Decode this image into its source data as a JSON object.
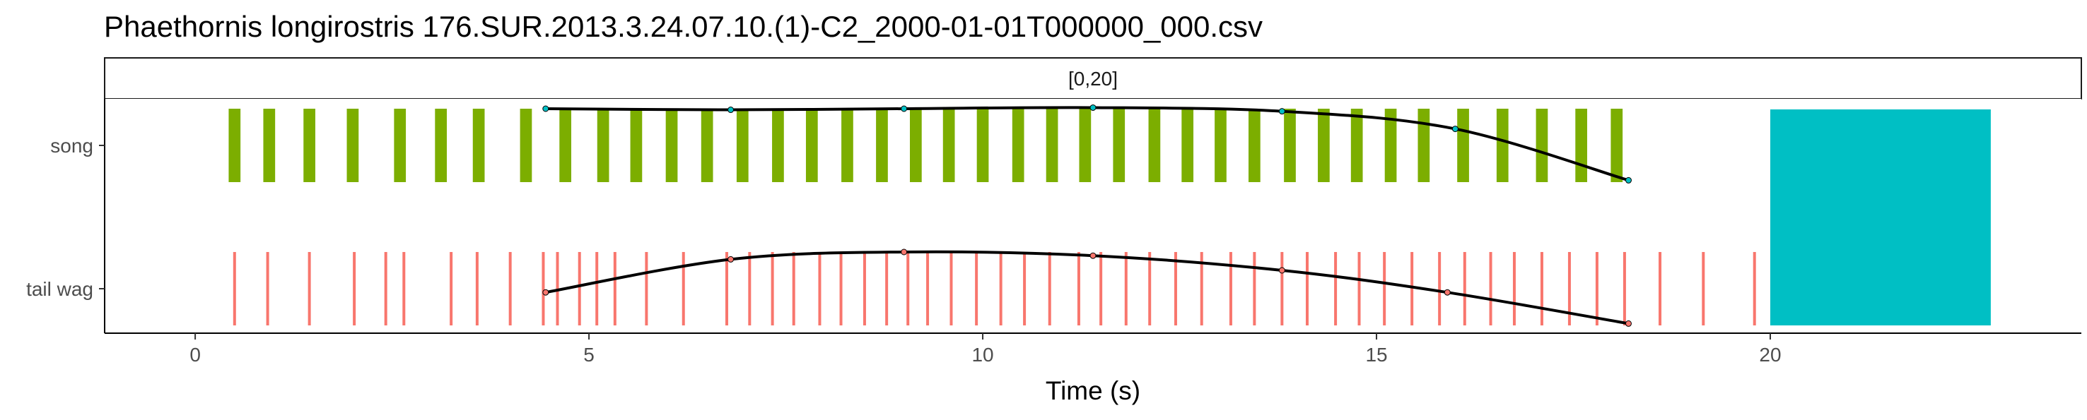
{
  "chart_data": {
    "type": "timeline",
    "title": "Phaethornis longirostris   176.SUR.2013.3.24.07.10.(1)-C2_2000-01-01T000000_000.csv",
    "facet_label": "[0,20]",
    "xlabel": "Time (s)",
    "xlim": [
      -1.15,
      23.95
    ],
    "x_ticks": [
      0,
      5,
      10,
      15,
      20
    ],
    "x_tick_labels": [
      "0",
      "5",
      "10",
      "15",
      "20"
    ],
    "grid": false,
    "rows": [
      {
        "name": "song",
        "color": "#7CAE00",
        "element_width_s": 0.15,
        "events": [
          0.5,
          0.94,
          1.45,
          2.0,
          2.6,
          3.12,
          3.6,
          4.2,
          4.7,
          5.18,
          5.6,
          6.05,
          6.5,
          6.95,
          7.4,
          7.83,
          8.28,
          8.72,
          9.15,
          9.57,
          10.0,
          10.45,
          10.88,
          11.3,
          11.73,
          12.18,
          12.6,
          13.02,
          13.45,
          13.9,
          14.33,
          14.75,
          15.18,
          15.6,
          16.1,
          16.6,
          17.1,
          17.6,
          18.05
        ]
      },
      {
        "name": "tail wag",
        "color": "#F8766D",
        "events": [
          0.5,
          0.92,
          1.45,
          2.02,
          2.42,
          2.65,
          3.25,
          3.58,
          4.0,
          4.42,
          4.6,
          4.88,
          5.1,
          5.33,
          5.73,
          6.2,
          6.75,
          7.04,
          7.33,
          7.6,
          7.93,
          8.2,
          8.5,
          8.78,
          9.05,
          9.3,
          9.6,
          9.92,
          10.23,
          10.53,
          10.85,
          11.22,
          11.5,
          11.82,
          12.12,
          12.45,
          12.78,
          13.15,
          13.45,
          13.8,
          14.12,
          14.48,
          14.78,
          15.1,
          15.45,
          15.8,
          16.12,
          16.45,
          16.75,
          17.1,
          17.45,
          17.8,
          18.15,
          18.6,
          19.15,
          19.8
        ]
      }
    ],
    "fill_block": {
      "color": "#00BFC4",
      "x_start": 20.0,
      "x_end": 22.8
    },
    "trend_lines": [
      {
        "row": "song",
        "color": "#000000",
        "points": [
          [
            4.45,
            1.0
          ],
          [
            6.8,
            0.97
          ],
          [
            9.0,
            1.0
          ],
          [
            11.4,
            1.03
          ],
          [
            13.8,
            0.93
          ],
          [
            16.0,
            0.45
          ],
          [
            18.2,
            -0.95
          ]
        ]
      },
      {
        "row": "tail wag",
        "color": "#000000",
        "points": [
          [
            4.45,
            -0.1
          ],
          [
            6.8,
            0.8
          ],
          [
            9.0,
            1.0
          ],
          [
            11.4,
            0.9
          ],
          [
            13.8,
            0.5
          ],
          [
            15.9,
            -0.1
          ],
          [
            18.2,
            -0.95
          ]
        ]
      }
    ]
  }
}
